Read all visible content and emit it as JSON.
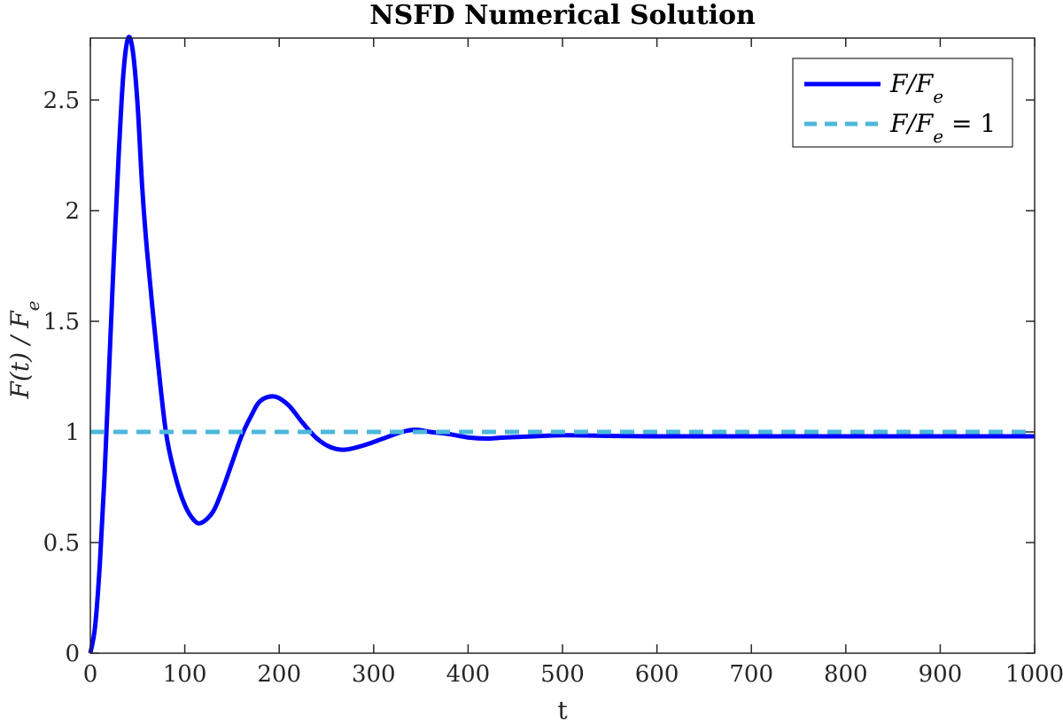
{
  "chart_data": {
    "type": "line",
    "title": "NSFD Numerical Solution",
    "xlabel": "t",
    "ylabel": "F(t) / F_e",
    "xlim": [
      0,
      1000
    ],
    "ylim": [
      0,
      2.78
    ],
    "x_ticks": [
      "0",
      "100",
      "200",
      "300",
      "400",
      "500",
      "600",
      "700",
      "800",
      "900",
      "1000"
    ],
    "y_ticks": [
      "0",
      "0.5",
      "1",
      "1.5",
      "2",
      "2.5"
    ],
    "grid": false,
    "legend_position": "top-right",
    "series": [
      {
        "name": "F/F_e",
        "color": "#0000ff",
        "style": "solid",
        "points": [
          [
            0,
            0
          ],
          [
            5,
            0.12
          ],
          [
            10,
            0.4
          ],
          [
            15,
            0.8
          ],
          [
            20,
            1.3
          ],
          [
            25,
            1.8
          ],
          [
            30,
            2.25
          ],
          [
            35,
            2.62
          ],
          [
            40,
            2.78
          ],
          [
            45,
            2.72
          ],
          [
            50,
            2.48
          ],
          [
            55,
            2.1
          ],
          [
            60,
            1.82
          ],
          [
            70,
            1.38
          ],
          [
            80,
            1.0
          ],
          [
            90,
            0.8
          ],
          [
            100,
            0.67
          ],
          [
            110,
            0.6
          ],
          [
            118,
            0.59
          ],
          [
            130,
            0.64
          ],
          [
            140,
            0.74
          ],
          [
            150,
            0.86
          ],
          [
            160,
            0.98
          ],
          [
            170,
            1.07
          ],
          [
            180,
            1.14
          ],
          [
            195,
            1.16
          ],
          [
            210,
            1.12
          ],
          [
            225,
            1.04
          ],
          [
            240,
            0.97
          ],
          [
            255,
            0.93
          ],
          [
            270,
            0.92
          ],
          [
            290,
            0.94
          ],
          [
            310,
            0.97
          ],
          [
            330,
            1.0
          ],
          [
            345,
            1.01
          ],
          [
            360,
            1.0
          ],
          [
            380,
            0.99
          ],
          [
            400,
            0.975
          ],
          [
            420,
            0.97
          ],
          [
            440,
            0.975
          ],
          [
            470,
            0.98
          ],
          [
            500,
            0.985
          ],
          [
            550,
            0.982
          ],
          [
            600,
            0.98
          ],
          [
            700,
            0.98
          ],
          [
            800,
            0.98
          ],
          [
            900,
            0.98
          ],
          [
            1000,
            0.98
          ]
        ]
      },
      {
        "name": "F/F_e = 1",
        "color": "#4db8db",
        "style": "dashed",
        "points": [
          [
            0,
            1
          ],
          [
            1000,
            1
          ]
        ]
      }
    ],
    "legend": [
      {
        "label_main": "F/F",
        "label_sub": "e",
        "label_tail": ""
      },
      {
        "label_main": "F/F",
        "label_sub": "e",
        "label_tail": " = 1"
      }
    ]
  }
}
